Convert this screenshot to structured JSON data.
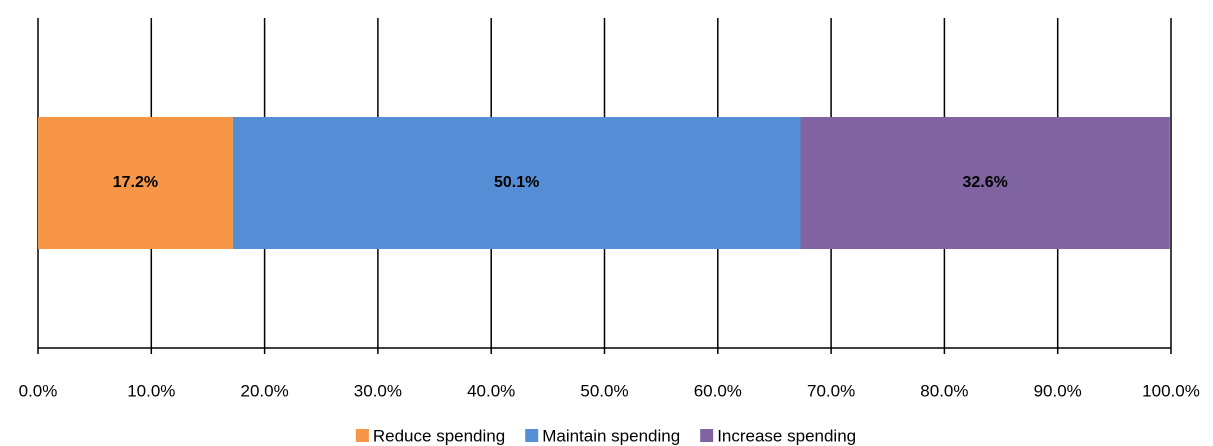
{
  "chart_data": {
    "type": "stacked-bar-horizontal",
    "categories": [
      null
    ],
    "series": [
      {
        "name": "Reduce spending",
        "color": "#f79646",
        "values": [
          17.2
        ],
        "value_labels": [
          "17.2%"
        ]
      },
      {
        "name": "Maintain spending",
        "color": "#558ed5",
        "values": [
          50.1
        ],
        "value_labels": [
          "50.1%"
        ]
      },
      {
        "name": "Increase spending",
        "color": "#8064a2",
        "values": [
          32.6
        ],
        "value_labels": [
          "32.6%"
        ]
      }
    ],
    "xlim": [
      0,
      100
    ],
    "xticks": [
      {
        "value": 0,
        "label": "0.0%"
      },
      {
        "value": 10,
        "label": "10.0%"
      },
      {
        "value": 20,
        "label": "20.0%"
      },
      {
        "value": 30,
        "label": "30.0%"
      },
      {
        "value": 40,
        "label": "40.0%"
      },
      {
        "value": 50,
        "label": "50.0%"
      },
      {
        "value": 60,
        "label": "60.0%"
      },
      {
        "value": 70,
        "label": "70.0%"
      },
      {
        "value": 80,
        "label": "80.0%"
      },
      {
        "value": 90,
        "label": "90.0%"
      },
      {
        "value": 100,
        "label": "100.0%"
      }
    ],
    "grid": true,
    "legend": "bottom"
  }
}
